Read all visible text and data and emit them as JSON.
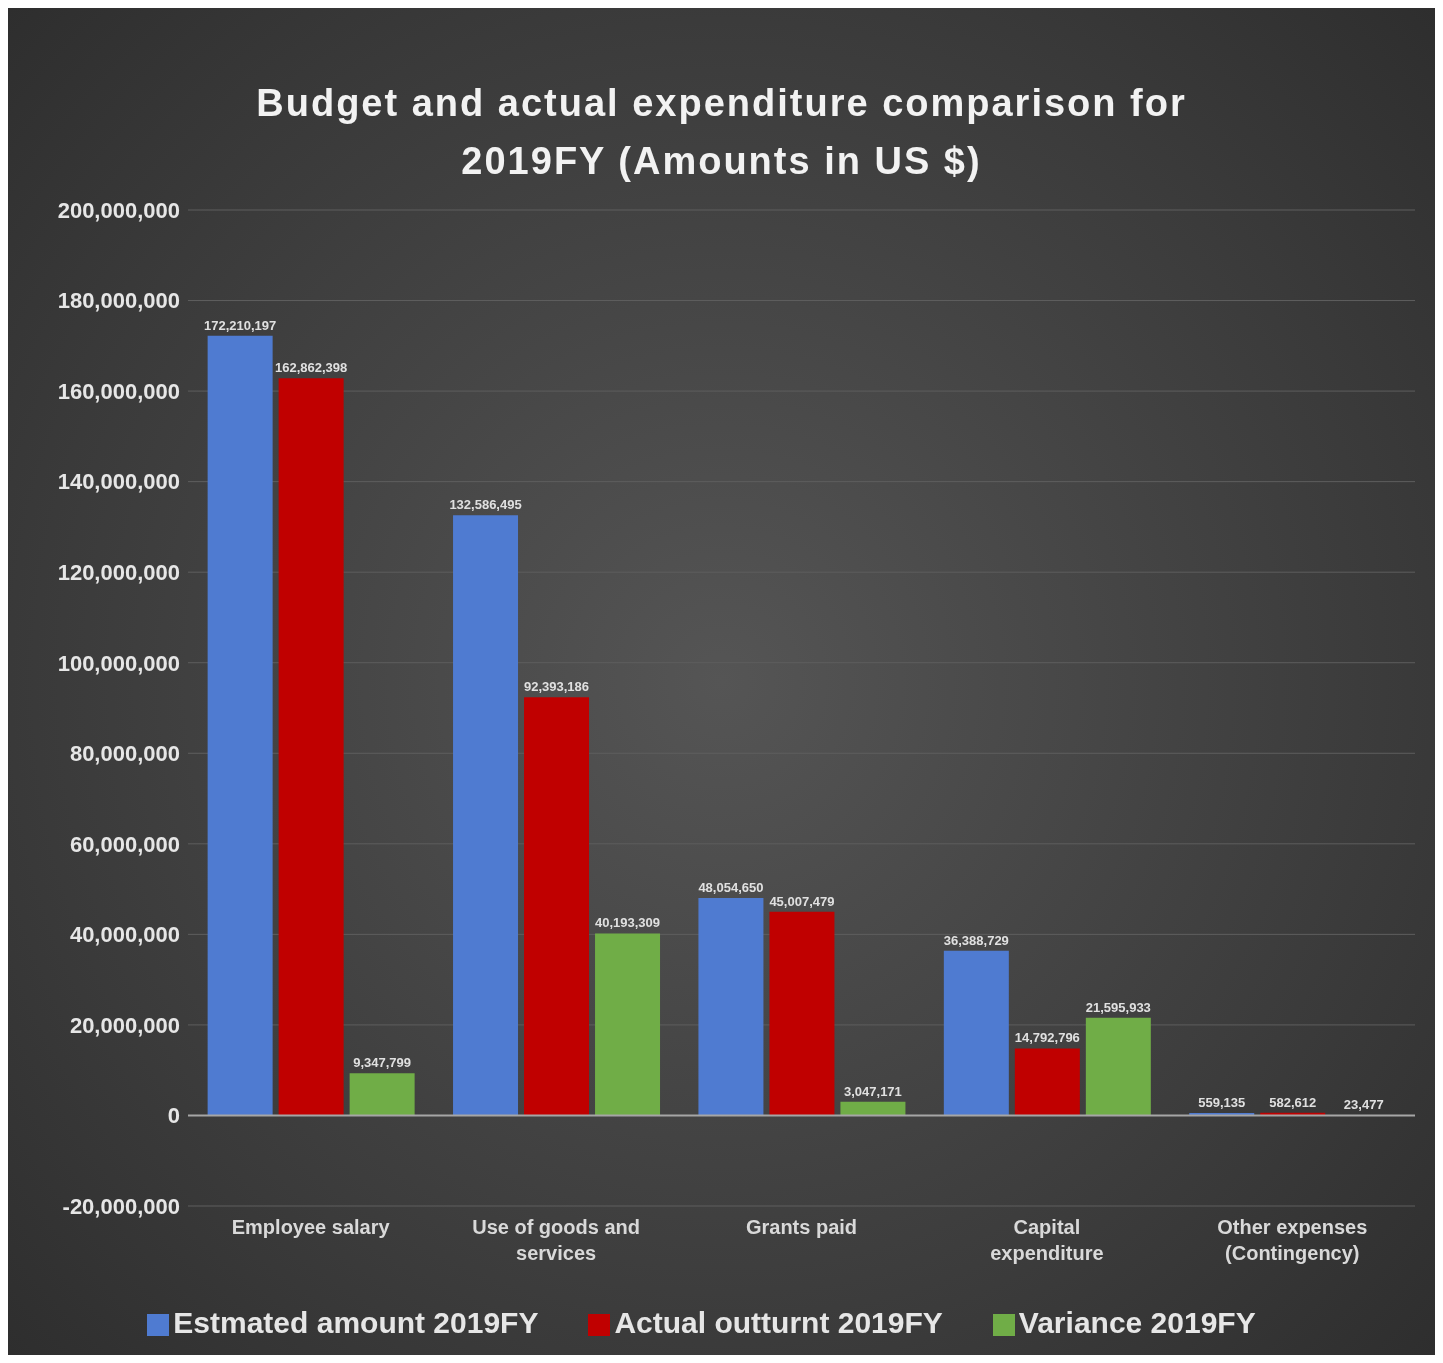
{
  "chart_data": {
    "type": "bar",
    "title": "Budget and actual expenditure comparison for 2019FY (Amounts in US $)",
    "categories": [
      "Employee salary",
      "Use of goods and services",
      "Grants paid",
      "Capital expenditure",
      "Other expenses (Contingency)"
    ],
    "series": [
      {
        "name": "Estmated amount 2019FY",
        "color": "#4f7bd1",
        "values": [
          172210197,
          132586495,
          48054650,
          36388729,
          559135
        ],
        "value_labels": [
          "172,210,197",
          "132,586,495",
          "48,054,650",
          "36,388,729",
          "559,135"
        ]
      },
      {
        "name": "Actual outturnt 2019FY",
        "color": "#c00000",
        "values": [
          162862398,
          92393186,
          45007479,
          14792796,
          582612
        ],
        "value_labels": [
          "162,862,398",
          "92,393,186",
          "45,007,479",
          "14,792,796",
          "582,612"
        ]
      },
      {
        "name": "Variance 2019FY",
        "color": "#70ad47",
        "values": [
          9347799,
          40193309,
          3047171,
          21595933,
          23477
        ],
        "value_labels": [
          "9,347,799",
          "40,193,309",
          "3,047,171",
          "21,595,933",
          "23,477"
        ]
      }
    ],
    "ylim": [
      -20000000,
      200000000
    ],
    "yticks": [
      {
        "value": -20000000,
        "label": "-20,000,000"
      },
      {
        "value": 0,
        "label": "0"
      },
      {
        "value": 20000000,
        "label": "20,000,000"
      },
      {
        "value": 40000000,
        "label": "40,000,000"
      },
      {
        "value": 60000000,
        "label": "60,000,000"
      },
      {
        "value": 80000000,
        "label": "80,000,000"
      },
      {
        "value": 100000000,
        "label": "100,000,000"
      },
      {
        "value": 120000000,
        "label": "120,000,000"
      },
      {
        "value": 140000000,
        "label": "140,000,000"
      },
      {
        "value": 160000000,
        "label": "160,000,000"
      },
      {
        "value": 180000000,
        "label": "180,000,000"
      },
      {
        "value": 200000000,
        "label": "200,000,000"
      }
    ],
    "grid": "y",
    "legend": "bottom"
  }
}
